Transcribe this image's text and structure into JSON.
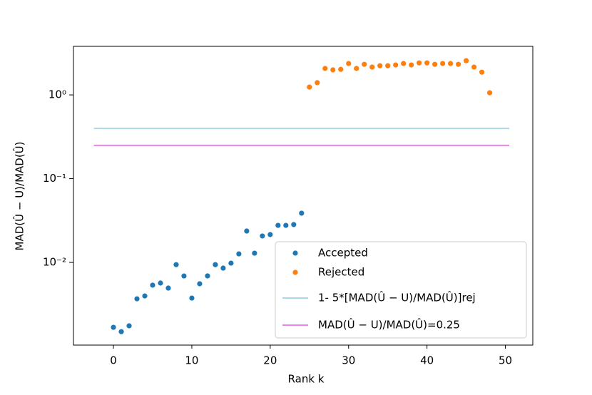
{
  "chart_data": {
    "type": "scatter",
    "xlabel": "Rank k",
    "ylabel": "MAD(Û − U)/MAD(Û)",
    "xlim": [
      -5.1,
      53.5
    ],
    "ylim": [
      0.00103,
      3.8
    ],
    "ylog": true,
    "xticks": [
      0,
      10,
      20,
      30,
      40,
      50
    ],
    "yticks": [
      {
        "value": 0.01,
        "label": "10⁻²"
      },
      {
        "value": 0.1,
        "label": "10⁻¹"
      },
      {
        "value": 1,
        "label": "10⁰"
      }
    ],
    "legend": "lower right",
    "series": [
      {
        "name": "Accepted",
        "color": "#1f77b4",
        "mode": "markers",
        "x": [
          0,
          1,
          2,
          3,
          4,
          5,
          6,
          7,
          8,
          9,
          10,
          11,
          12,
          13,
          14,
          15,
          16,
          17,
          18,
          19,
          20,
          21,
          22,
          23,
          24
        ],
        "values": [
          0.00168,
          0.00149,
          0.00175,
          0.00368,
          0.00398,
          0.00535,
          0.00567,
          0.00494,
          0.0094,
          0.00689,
          0.00375,
          0.00556,
          0.0069,
          0.0094,
          0.00855,
          0.0098,
          0.01265,
          0.0237,
          0.0129,
          0.0207,
          0.0215,
          0.0277,
          0.0277,
          0.0283,
          0.0387
        ]
      },
      {
        "name": "Rejected",
        "color": "#ff7f0e",
        "mode": "markers",
        "x": [
          25,
          26,
          27,
          28,
          29,
          30,
          31,
          32,
          33,
          34,
          35,
          36,
          37,
          38,
          39,
          40,
          41,
          42,
          43,
          44,
          45,
          46,
          47,
          48
        ],
        "values": [
          1.24,
          1.4,
          2.07,
          1.99,
          2.02,
          2.37,
          2.07,
          2.32,
          2.15,
          2.23,
          2.23,
          2.28,
          2.37,
          2.28,
          2.41,
          2.41,
          2.32,
          2.37,
          2.37,
          2.32,
          2.56,
          2.15,
          1.87,
          1.06
        ]
      },
      {
        "name": "1-  5*[MAD(Û − U)/MAD(Û)]rej",
        "color": "#add8e6",
        "mode": "line",
        "x": [
          -2.5,
          50.5
        ],
        "values": [
          0.398,
          0.398
        ]
      },
      {
        "name": "MAD(Û − U)/MAD(Û)=0.25",
        "color": "#ee82ee",
        "mode": "line",
        "x": [
          -2.5,
          50.5
        ],
        "values": [
          0.25,
          0.25
        ]
      }
    ]
  }
}
